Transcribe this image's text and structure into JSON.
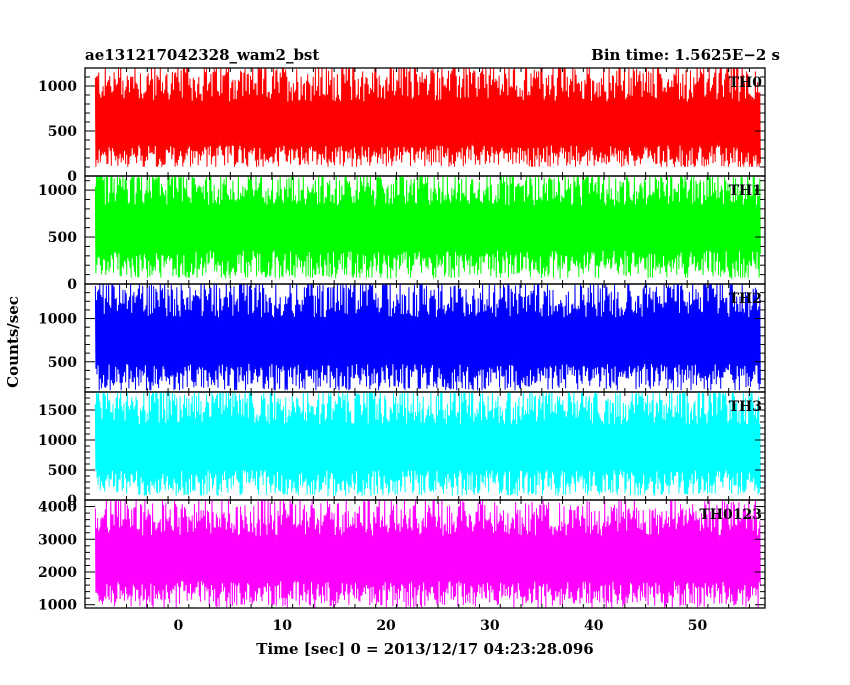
{
  "header": {
    "left_title": "ae131217042328_wam2_bst",
    "right_title": "Bin time: 1.5625E−2 s"
  },
  "chart_data": {
    "type": "line",
    "x_axis": {
      "label": "Time [sec] 0 = 2013/12/17 04:23:28.096",
      "range": [
        -9,
        56.5
      ],
      "ticks": [
        0,
        10,
        20,
        30,
        40,
        50
      ]
    },
    "y_axis_label": "Counts/sec",
    "data_time_range": [
      -8,
      56
    ],
    "panels": [
      {
        "label": "TH0",
        "color": "#ff0000",
        "ylim": [
          0,
          1200
        ],
        "yticks": [
          0,
          500,
          1000
        ],
        "band_low": 120,
        "band_high": 1200,
        "mean": 520
      },
      {
        "label": "TH1",
        "color": "#00ff00",
        "ylim": [
          0,
          1150
        ],
        "yticks": [
          0,
          500,
          1000
        ],
        "band_low": 80,
        "band_high": 1150,
        "mean": 580
      },
      {
        "label": "TH2",
        "color": "#0000ff",
        "ylim": [
          150,
          1400
        ],
        "yticks": [
          500,
          1000
        ],
        "band_low": 200,
        "band_high": 1400,
        "mean": 700
      },
      {
        "label": "TH3",
        "color": "#00ffff",
        "ylim": [
          0,
          1800
        ],
        "yticks": [
          0,
          500,
          1000,
          1500
        ],
        "band_low": 100,
        "band_high": 1800,
        "mean": 820
      },
      {
        "label": "TH0123",
        "color": "#ff00ff",
        "ylim": [
          900,
          4200
        ],
        "yticks": [
          1000,
          2000,
          3000,
          4000
        ],
        "band_low": 1000,
        "band_high": 4100,
        "mean": 2300
      }
    ]
  }
}
